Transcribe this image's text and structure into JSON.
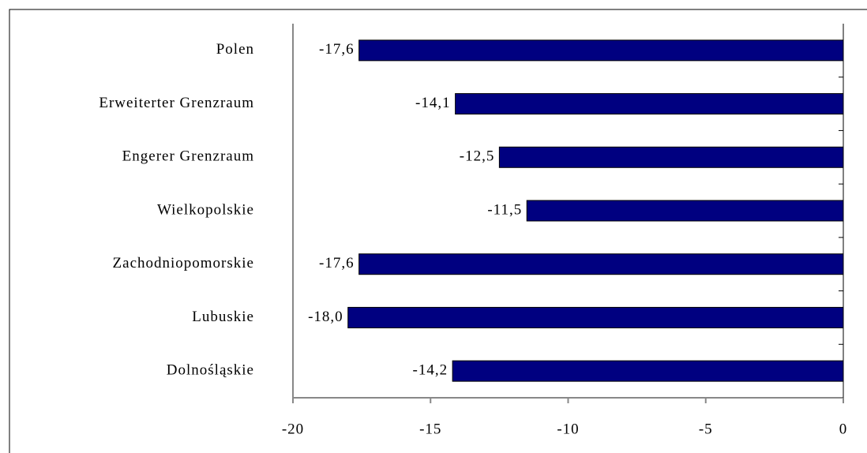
{
  "chart_data": {
    "type": "bar",
    "orientation": "horizontal",
    "categories": [
      "Polen",
      "Erweiterter Grenzraum",
      "Engerer Grenzraum",
      "Wielkopolskie",
      "Zachodniopomorskie",
      "Lubuskie",
      "Dolnośląskie"
    ],
    "values": [
      -17.6,
      -14.1,
      -12.5,
      -11.5,
      -17.6,
      -18.0,
      -14.2
    ],
    "value_labels": [
      "-17,6",
      "-14,1",
      "-12,5",
      "-11,5",
      "-17,6",
      "-18,0",
      "-14,2"
    ],
    "color": "#000080",
    "xlim": [
      -20,
      0
    ],
    "xticks": [
      -20,
      -15,
      -10,
      -5,
      0
    ]
  }
}
